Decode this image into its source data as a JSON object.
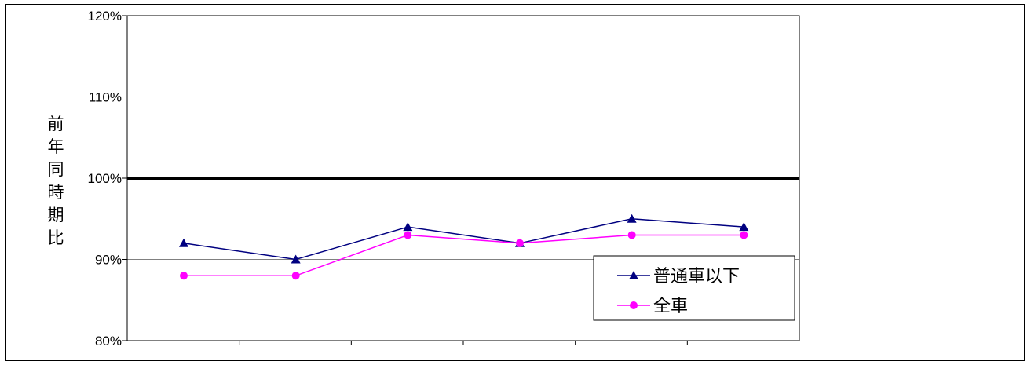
{
  "chart_data": {
    "type": "line",
    "title": "",
    "xlabel": "",
    "ylabel": "前年同時期比",
    "ylim": [
      80,
      120
    ],
    "yticks": [
      "80%",
      "90%",
      "100%",
      "110%",
      "120%"
    ],
    "reference_line": 100,
    "categories": [
      "",
      "",
      "",
      "",
      "",
      ""
    ],
    "grid": true,
    "legend_position": "bottom-right",
    "series": [
      {
        "name": "普通車以下",
        "color": "#000080",
        "marker": "triangle",
        "values": [
          92,
          90,
          94,
          92,
          95,
          94
        ]
      },
      {
        "name": "全車",
        "color": "#ff00ff",
        "marker": "circle",
        "values": [
          88,
          88,
          93,
          92,
          93,
          93
        ]
      }
    ]
  }
}
